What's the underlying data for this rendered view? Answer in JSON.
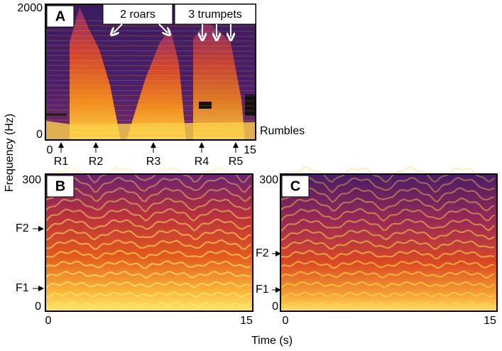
{
  "y_axis_label": "Frequency (Hz)",
  "x_axis_label": "Time (s)",
  "chart_data": [
    {
      "type": "spectrogram",
      "title": "A",
      "xlim": [
        0,
        15
      ],
      "xticks": [
        0,
        15
      ],
      "ylim": [
        0,
        2000
      ],
      "yticks": [
        0,
        2000
      ],
      "annotations": [
        "2 roars",
        "3 trumpets",
        "Rumbles",
        "R1",
        "R2",
        "R3",
        "R4",
        "R5"
      ]
    },
    {
      "type": "spectrogram",
      "title": "B",
      "xlim": [
        0,
        15
      ],
      "xticks": [
        0,
        15
      ],
      "ylim": [
        0,
        300
      ],
      "yticks": [
        0,
        300
      ],
      "annotations": [
        "F2",
        "F1"
      ]
    },
    {
      "type": "spectrogram",
      "title": "C",
      "xlim": [
        0,
        15
      ],
      "xticks": [
        0,
        15
      ],
      "ylim": [
        0,
        300
      ],
      "yticks": [
        0,
        300
      ],
      "annotations": [
        "F2",
        "F1"
      ]
    }
  ]
}
